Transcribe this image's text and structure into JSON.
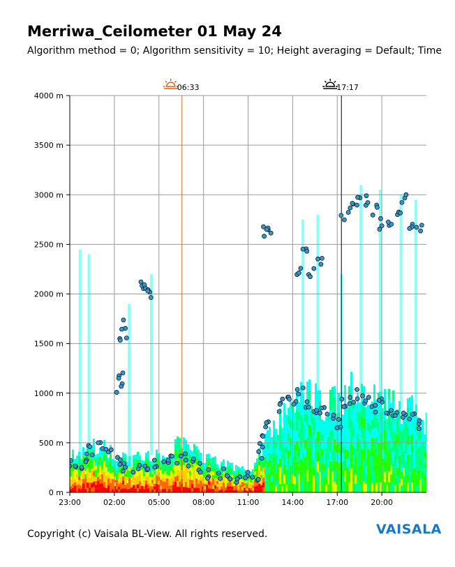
{
  "page": {
    "title": "Merriwa_Ceilometer 01 May 24",
    "subtitle": "Algorithm method = 0; Algorithm sensitivity = 10; Height averaging = Default; Time",
    "copyright": "Copyright (c) Vaisala BL-View. All rights reserved.",
    "brand": "VAISALA",
    "brand_color": "#1777c9"
  },
  "chart_data": {
    "type": "heatmap",
    "title": "Merriwa_Ceilometer 01 May 24",
    "xlabel": "",
    "ylabel": "",
    "x_ticks": [
      "23:00",
      "02:00",
      "05:00",
      "08:00",
      "11:00",
      "14:00",
      "17:00",
      "20:00"
    ],
    "x_tick_hours": [
      23,
      26,
      29,
      32,
      35,
      38,
      41,
      44
    ],
    "xlim_hours": [
      23,
      47
    ],
    "y_ticks": [
      "0 m",
      "500 m",
      "1000 m",
      "1500 m",
      "2000 m",
      "2500 m",
      "3000 m",
      "3500 m",
      "4000 m"
    ],
    "y_tick_values": [
      0,
      500,
      1000,
      1500,
      2000,
      2500,
      3000,
      3500,
      4000
    ],
    "ylim": [
      0,
      4000
    ],
    "grid": true,
    "markers": [
      {
        "name": "sunrise",
        "label": "06:33",
        "hour": 30.55,
        "color": "#d2691e",
        "icon": "sunrise-icon"
      },
      {
        "name": "sunset",
        "label": "17:17",
        "hour": 41.28,
        "color": "#000000",
        "icon": "sunset-icon"
      }
    ],
    "colorscale": [
      "#00ffee",
      "#00ff88",
      "#22ff00",
      "#ddff00",
      "#ffcc00",
      "#ff6600",
      "#ff0000"
    ],
    "colorscale_colors_note": "",
    "cloud_base_color": "#3399cc",
    "profile": {
      "hour": [
        23,
        24,
        25,
        26,
        27,
        28,
        29,
        30,
        31,
        32,
        33,
        34,
        35,
        36,
        37,
        38,
        39,
        40,
        41,
        42,
        43,
        44,
        45,
        46,
        47
      ],
      "layer_top_m": [
        400,
        380,
        500,
        350,
        300,
        400,
        350,
        450,
        500,
        350,
        280,
        250,
        200,
        450,
        700,
        900,
        950,
        900,
        900,
        1000,
        950,
        900,
        850,
        800,
        700
      ]
    },
    "cloud_base_series": [
      {
        "hour": [
          23.2,
          23.6,
          24.0,
          24.5,
          25.1,
          25.6,
          26.2,
          26.8,
          27.5,
          28.1,
          28.8,
          29.4,
          30.0,
          30.7,
          31.2,
          31.8,
          32.5,
          33.2,
          33.8,
          34.4,
          35.0,
          35.5
        ],
        "height_m": [
          300,
          280,
          350,
          420,
          500,
          450,
          300,
          260,
          240,
          250,
          280,
          300,
          320,
          330,
          300,
          250,
          200,
          180,
          170,
          160,
          150,
          140
        ]
      },
      {
        "hour": [
          26.3,
          26.5,
          26.6,
          26.7,
          28.0,
          28.2,
          28.4
        ],
        "height_m": [
          1050,
          1200,
          1500,
          1700,
          2100,
          2050,
          2000
        ]
      },
      {
        "hour": [
          35.8,
          36.0,
          36.2,
          37.0,
          37.5,
          38.0,
          38.5,
          39.0,
          39.5,
          40.0,
          40.5,
          41.0,
          41.5,
          42.0,
          42.5,
          43.0,
          43.5,
          44.0,
          44.5,
          45.0,
          45.5,
          46.0,
          46.5
        ],
        "height_m": [
          400,
          550,
          700,
          850,
          950,
          900,
          1000,
          900,
          850,
          800,
          750,
          700,
          900,
          950,
          1000,
          900,
          850,
          900,
          850,
          800,
          750,
          780,
          700
        ]
      },
      {
        "hour": [
          36.2,
          36.4,
          38.5,
          38.8,
          39.2,
          39.8,
          41.5,
          42.0,
          42.5,
          43.0,
          43.5,
          44.0,
          44.5,
          45.0,
          45.5,
          46.0,
          46.5
        ],
        "height_m": [
          2620,
          2660,
          2250,
          2450,
          2200,
          2350,
          2800,
          2900,
          2950,
          2950,
          2850,
          2700,
          2750,
          2850,
          2950,
          2700,
          2650
        ]
      }
    ]
  }
}
